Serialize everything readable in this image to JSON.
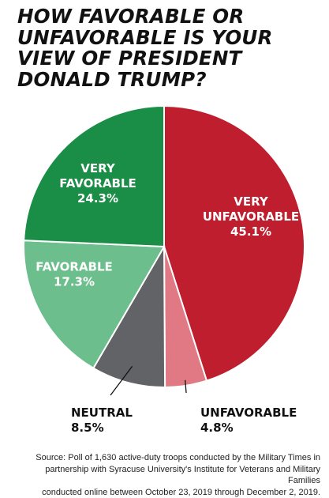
{
  "title_lines": [
    "HOW FAVORABLE OR",
    "UNFAVORABLE IS YOUR",
    "VIEW OF PRESIDENT",
    "DONALD TRUMP?"
  ],
  "source_lines": [
    "Source: Poll of 1,630 active-duty troops conducted by the Military Times in",
    "partnership with Syracuse University's Institute for Veterans and Military Families",
    "conducted online between October 23, 2019 through December 2, 2019."
  ],
  "chart_data": {
    "type": "pie",
    "title": "HOW FAVORABLE OR UNFAVORABLE IS YOUR VIEW OF PRESIDENT DONALD TRUMP?",
    "start": "top-center",
    "direction": "clockwise",
    "slices": [
      {
        "label": "VERY UNFAVORABLE",
        "value": 45.1,
        "value_label": "45.1%",
        "color": "#be1e2d",
        "label_position": "inside"
      },
      {
        "label": "UNFAVORABLE",
        "value": 4.8,
        "value_label": "4.8%",
        "color": "#e07983",
        "label_position": "outside"
      },
      {
        "label": "NEUTRAL",
        "value": 8.5,
        "value_label": "8.5%",
        "color": "#626366",
        "label_position": "outside"
      },
      {
        "label": "FAVORABLE",
        "value": 17.3,
        "value_label": "17.3%",
        "color": "#6cbf8c",
        "label_position": "inside"
      },
      {
        "label": "VERY FAVORABLE",
        "value": 24.3,
        "value_label": "24.3%",
        "color": "#1a8e46",
        "label_position": "inside"
      }
    ]
  }
}
